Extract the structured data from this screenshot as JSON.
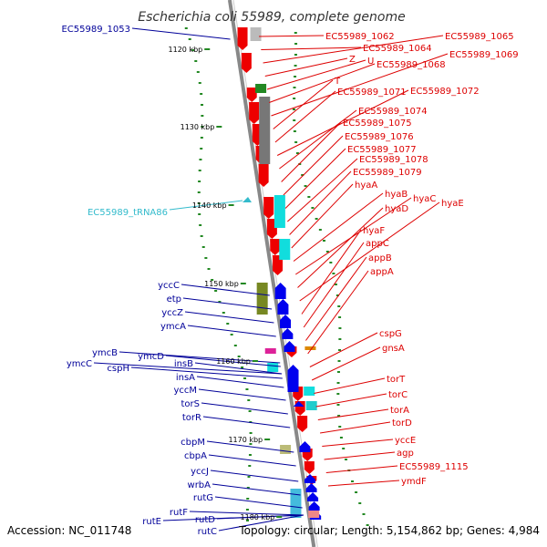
{
  "title": "Escherichia coli 55989, complete genome",
  "footer": {
    "accession": "Accession: NC_011748",
    "stats": "Topology: circular; Length: 5,154,862 bp; Genes: 4,984"
  },
  "colors": {
    "right_label": "#dd0000",
    "left_label": "#000099",
    "trna_label": "#33bbcc",
    "forward_gene": "#0000ee",
    "reverse_gene": "#ee0000",
    "axis": "#888888",
    "gc_tick": "#228822"
  },
  "scale_labels": [
    "1120 kbp",
    "1130 kbp",
    "1140 kbp",
    "1150 kbp",
    "1160 kbp",
    "1170 kbp",
    "1180 kbp"
  ],
  "right_labels": [
    "EC55989_1062",
    "EC55989_1064",
    "EC55989_1065",
    "Z",
    "U",
    "EC55989_1068",
    "EC55989_1069",
    "T",
    "EC55989_1071",
    "EC55989_1072",
    "EC55989_1074",
    "EC55989_1075",
    "EC55989_1076",
    "EC55989_1077",
    "EC55989_1078",
    "EC55989_1079",
    "hyaA",
    "hyaB",
    "hyaC",
    "hyaD",
    "hyaE",
    "hyaF",
    "appC",
    "appB",
    "appA",
    "cspG",
    "gnsA",
    "torT",
    "torC",
    "torA",
    "torD",
    "yccE",
    "agp",
    "EC55989_1115",
    "ymdF"
  ],
  "left_labels": [
    "EC55989_1053",
    "yccC",
    "etp",
    "yccZ",
    "ymcA",
    "ymcB",
    "ymcD",
    "ymcC",
    "cspH",
    "insB",
    "insA",
    "yccM",
    "torS",
    "torR",
    "cbpM",
    "cbpA",
    "yccJ",
    "wrbA",
    "rutG",
    "rutF",
    "rutE",
    "rutD",
    "rutC"
  ],
  "trna_labels": [
    "EC55989_tRNA86"
  ]
}
